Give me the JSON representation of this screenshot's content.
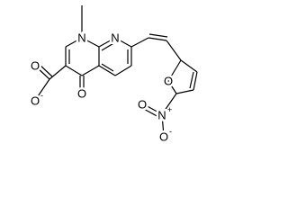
{
  "atoms": [
    {
      "symbol": "N"
    },
    {
      "symbol": "N"
    },
    {
      "symbol": "O"
    },
    {
      "symbol": "O",
      "charge": "-"
    },
    {
      "symbol": "O"
    },
    {
      "symbol": "O"
    },
    {
      "symbol": "N",
      "charge": "+"
    },
    {
      "symbol": "O"
    },
    {
      "symbol": "O",
      "charge": "-"
    }
  ]
}
